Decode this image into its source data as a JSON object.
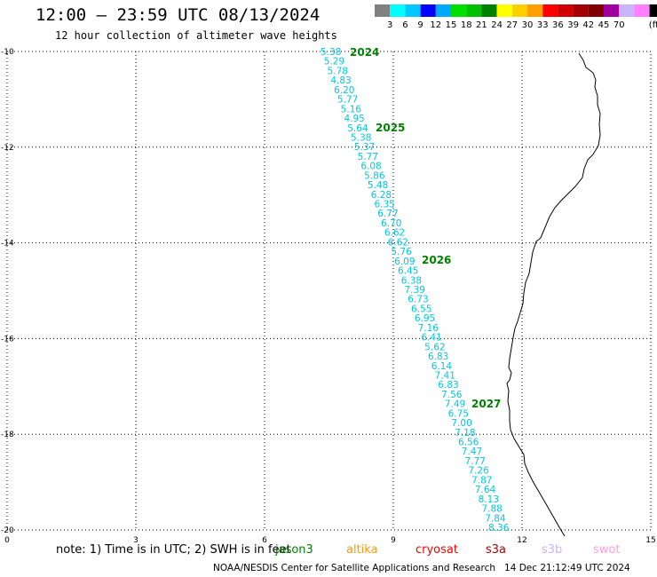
{
  "header": {
    "title": "12:00 – 23:59 UTC 08/13/2024",
    "subtitle": "12 hour collection of altimeter wave heights"
  },
  "legend": {
    "colors": [
      "#808080",
      "#00ffff",
      "#00c8ff",
      "#0000ff",
      "#00aaff",
      "#00e000",
      "#00c000",
      "#008000",
      "#ffff00",
      "#ffd000",
      "#ffa000",
      "#ff0000",
      "#d00000",
      "#a00000",
      "#800000",
      "#a000a0",
      "#c8b4ff",
      "#ff80ff",
      "#000000"
    ],
    "labels": [
      "3",
      "6",
      "9",
      "12",
      "15",
      "18",
      "21",
      "24",
      "27",
      "30",
      "33",
      "36",
      "39",
      "42",
      "45",
      "70"
    ],
    "unit": "(ft)"
  },
  "axes": {
    "x_ticks": [
      "0",
      "3",
      "6",
      "9",
      "12",
      "15"
    ],
    "y_ticks": [
      "-10",
      "-12",
      "-14",
      "-16",
      "-18",
      "-20"
    ]
  },
  "track": {
    "color": "#00c8e0",
    "values": [
      "5.38",
      "5.29",
      "5.78",
      "4.83",
      "6.20",
      "5.77",
      "5.16",
      "4.95",
      "5.64",
      "5.38",
      "5.37",
      "5.77",
      "6.08",
      "5.86",
      "5.48",
      "6.28",
      "6.35",
      "6.77",
      "6.70",
      "6.62",
      "6.62",
      "5.76",
      "6.09",
      "6.45",
      "6.38",
      "7.39",
      "6.73",
      "6.55",
      "6.95",
      "7.16",
      "6.41",
      "5.62",
      "6.83",
      "6.14",
      "7.41",
      "6.83",
      "7.56",
      "7.49",
      "6.75",
      "7.00",
      "7.18",
      "6.56",
      "7.47",
      "7.77",
      "7.26",
      "7.87",
      "7.64",
      "8.13",
      "7.88",
      "7.84",
      "8.36"
    ]
  },
  "track_labels": [
    {
      "text": "2024",
      "color": "#008000"
    },
    {
      "text": "2025",
      "color": "#008000"
    },
    {
      "text": "2026",
      "color": "#008000"
    },
    {
      "text": "2027",
      "color": "#008000"
    }
  ],
  "footer": {
    "note": "note: 1) Time is in UTC; 2) SWH is in feet",
    "satellites": [
      {
        "name": "jason3",
        "color": "#008000"
      },
      {
        "name": "altika",
        "color": "#ff9900"
      },
      {
        "name": "cryosat",
        "color": "#ff0000"
      },
      {
        "name": "s3a",
        "color": "#b00000"
      },
      {
        "name": "s3b",
        "color": "#c8b4ff"
      },
      {
        "name": "swot",
        "color": "#ff9ee0"
      }
    ],
    "credit": "NOAA/NESDIS Center for Satellite Applications and Research   14 Dec 21:12:49 UTC 2024"
  }
}
